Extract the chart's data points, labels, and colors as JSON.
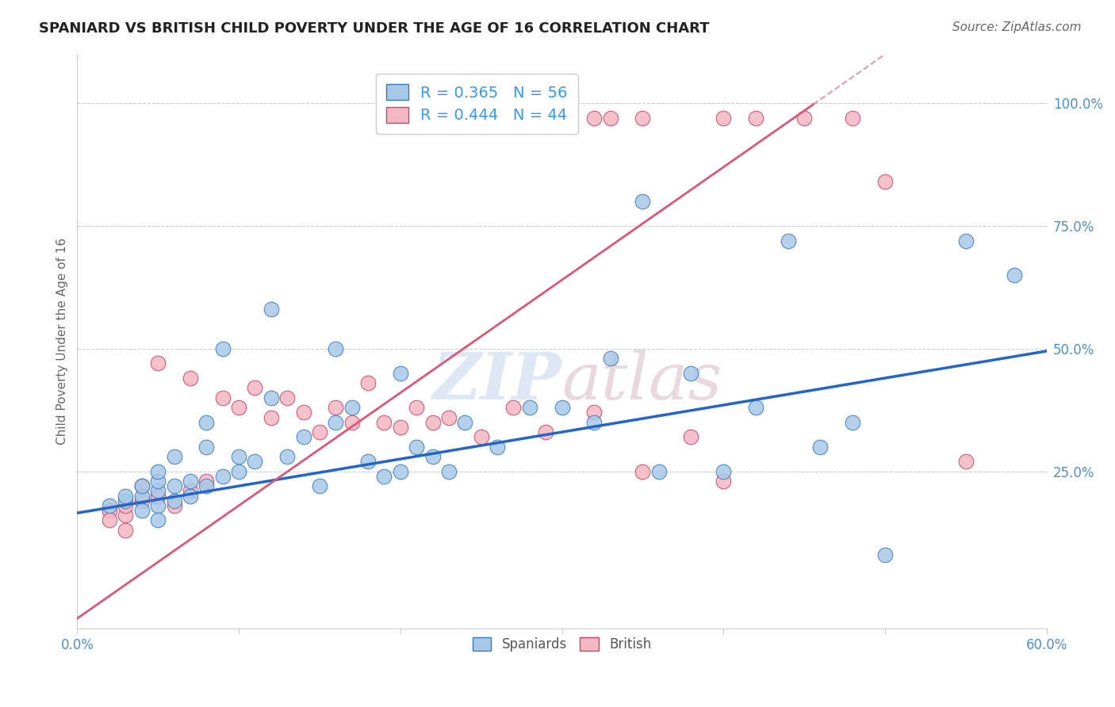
{
  "title": "SPANIARD VS BRITISH CHILD POVERTY UNDER THE AGE OF 16 CORRELATION CHART",
  "source": "Source: ZipAtlas.com",
  "ylabel": "Child Poverty Under the Age of 16",
  "xlim": [
    0.0,
    0.6
  ],
  "ylim": [
    -0.07,
    1.1
  ],
  "xticks": [
    0.0,
    0.1,
    0.2,
    0.3,
    0.4,
    0.5,
    0.6
  ],
  "xticklabels": [
    "0.0%",
    "",
    "",
    "",
    "",
    "",
    "60.0%"
  ],
  "ytick_positions": [
    0.25,
    0.5,
    0.75,
    1.0
  ],
  "ytick_labels": [
    "25.0%",
    "50.0%",
    "75.0%",
    "100.0%"
  ],
  "legend_entries": [
    {
      "label": "R = 0.365   N = 56"
    },
    {
      "label": "R = 0.444   N = 44"
    }
  ],
  "legend_bottom": [
    "Spaniards",
    "British"
  ],
  "watermark_zip": "ZIP",
  "watermark_atlas": "atlas",
  "blue_scatter_color": "#a8c8e8",
  "pink_scatter_color": "#f4b8c4",
  "blue_edge_color": "#3a7abf",
  "pink_edge_color": "#cc4466",
  "blue_line_color": "#2266cc",
  "pink_line_color": "#dd5577",
  "legend_text_color": "#3399ff",
  "axis_tick_color": "#4a90d9",
  "grid_color": "#cccccc",
  "background_color": "#ffffff",
  "blue_intercept": 0.165,
  "blue_slope": 0.55,
  "pink_intercept": -0.05,
  "pink_slope": 2.3,
  "spaniards_x": [
    0.02,
    0.03,
    0.03,
    0.04,
    0.04,
    0.04,
    0.05,
    0.05,
    0.05,
    0.05,
    0.05,
    0.06,
    0.06,
    0.06,
    0.07,
    0.07,
    0.08,
    0.08,
    0.08,
    0.09,
    0.09,
    0.1,
    0.1,
    0.11,
    0.12,
    0.12,
    0.13,
    0.14,
    0.15,
    0.16,
    0.16,
    0.17,
    0.18,
    0.19,
    0.2,
    0.2,
    0.21,
    0.22,
    0.23,
    0.24,
    0.26,
    0.28,
    0.3,
    0.32,
    0.33,
    0.35,
    0.36,
    0.38,
    0.4,
    0.42,
    0.44,
    0.46,
    0.48,
    0.5,
    0.55,
    0.58
  ],
  "spaniards_y": [
    0.18,
    0.19,
    0.2,
    0.17,
    0.2,
    0.22,
    0.18,
    0.21,
    0.23,
    0.25,
    0.15,
    0.19,
    0.22,
    0.28,
    0.2,
    0.23,
    0.22,
    0.3,
    0.35,
    0.24,
    0.5,
    0.25,
    0.28,
    0.27,
    0.4,
    0.58,
    0.28,
    0.32,
    0.22,
    0.35,
    0.5,
    0.38,
    0.27,
    0.24,
    0.25,
    0.45,
    0.3,
    0.28,
    0.25,
    0.35,
    0.3,
    0.38,
    0.38,
    0.35,
    0.48,
    0.8,
    0.25,
    0.45,
    0.25,
    0.38,
    0.72,
    0.3,
    0.35,
    0.08,
    0.72,
    0.65
  ],
  "british_x": [
    0.02,
    0.02,
    0.03,
    0.03,
    0.03,
    0.04,
    0.04,
    0.05,
    0.05,
    0.06,
    0.07,
    0.07,
    0.08,
    0.09,
    0.1,
    0.11,
    0.12,
    0.13,
    0.14,
    0.15,
    0.16,
    0.17,
    0.18,
    0.19,
    0.2,
    0.21,
    0.22,
    0.23,
    0.25,
    0.27,
    0.29,
    0.32,
    0.35,
    0.38,
    0.4,
    0.32,
    0.33,
    0.35,
    0.4,
    0.42,
    0.45,
    0.48,
    0.5,
    0.55
  ],
  "british_y": [
    0.17,
    0.15,
    0.16,
    0.18,
    0.13,
    0.19,
    0.22,
    0.2,
    0.47,
    0.18,
    0.21,
    0.44,
    0.23,
    0.4,
    0.38,
    0.42,
    0.36,
    0.4,
    0.37,
    0.33,
    0.38,
    0.35,
    0.43,
    0.35,
    0.34,
    0.38,
    0.35,
    0.36,
    0.32,
    0.38,
    0.33,
    0.37,
    0.25,
    0.32,
    0.23,
    0.97,
    0.97,
    0.97,
    0.97,
    0.97,
    0.97,
    0.97,
    0.84,
    0.27
  ]
}
